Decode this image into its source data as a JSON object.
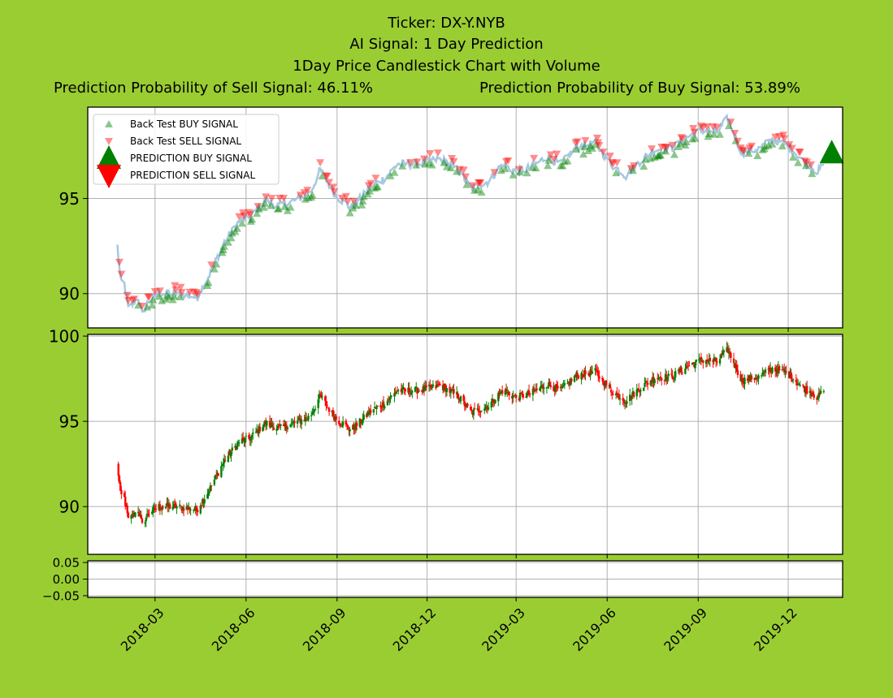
{
  "titles": {
    "line1": "Ticker: DX-Y.NYB",
    "line2": "AI Signal: 1 Day Prediction",
    "line3": "1Day Price Candlestick Chart with Volume",
    "sell_prob": "Prediction Probability of Sell Signal: 46.11%",
    "buy_prob": "Prediction Probability of Buy Signal: 53.89%"
  },
  "colors": {
    "background": "#9acd32",
    "buy": "#008000",
    "sell": "#ff0000",
    "close_line": "#a6c8e0",
    "grid": "#b0b0b0"
  },
  "chart_data": [
    {
      "type": "scatter",
      "panel": "signals",
      "ylim": [
        88.2,
        99.8
      ],
      "yticks": [
        90,
        95
      ],
      "grid": true,
      "legend_position": "top-left",
      "legend": [
        "Back Test BUY SIGNAL",
        "Back Test SELL SIGNAL",
        "PREDICTION BUY SIGNAL",
        "PREDICTION SELL SIGNAL"
      ],
      "close_anchors": [
        [
          "2018-01-22",
          92.5
        ],
        [
          "2018-01-25",
          90.7
        ],
        [
          "2018-01-29",
          90.5
        ],
        [
          "2018-02-02",
          89.2
        ],
        [
          "2018-02-12",
          89.8
        ],
        [
          "2018-02-16",
          88.9
        ],
        [
          "2018-02-22",
          89.6
        ],
        [
          "2018-03-05",
          90.0
        ],
        [
          "2018-03-20",
          90.0
        ],
        [
          "2018-04-05",
          89.9
        ],
        [
          "2018-04-12",
          89.8
        ],
        [
          "2018-04-25",
          91.0
        ],
        [
          "2018-05-10",
          92.7
        ],
        [
          "2018-05-25",
          93.8
        ],
        [
          "2018-06-05",
          94.0
        ],
        [
          "2018-06-20",
          94.9
        ],
        [
          "2018-07-05",
          94.6
        ],
        [
          "2018-07-20",
          94.9
        ],
        [
          "2018-08-05",
          95.3
        ],
        [
          "2018-08-15",
          96.5
        ],
        [
          "2018-08-30",
          95.2
        ],
        [
          "2018-09-15",
          94.5
        ],
        [
          "2018-09-25",
          95.0
        ],
        [
          "2018-10-05",
          95.6
        ],
        [
          "2018-10-20",
          96.1
        ],
        [
          "2018-11-01",
          96.8
        ],
        [
          "2018-11-15",
          96.8
        ],
        [
          "2018-12-01",
          96.9
        ],
        [
          "2018-12-15",
          97.1
        ],
        [
          "2019-01-01",
          96.5
        ],
        [
          "2019-01-15",
          95.5
        ],
        [
          "2019-02-01",
          95.9
        ],
        [
          "2019-02-15",
          96.8
        ],
        [
          "2019-03-01",
          96.4
        ],
        [
          "2019-03-15",
          96.6
        ],
        [
          "2019-04-01",
          97.2
        ],
        [
          "2019-04-15",
          96.8
        ],
        [
          "2019-05-01",
          97.7
        ],
        [
          "2019-05-20",
          97.9
        ],
        [
          "2019-06-05",
          96.8
        ],
        [
          "2019-06-20",
          96.2
        ],
        [
          "2019-07-05",
          97.0
        ],
        [
          "2019-07-20",
          97.6
        ],
        [
          "2019-08-05",
          97.6
        ],
        [
          "2019-08-20",
          98.2
        ],
        [
          "2019-09-05",
          98.6
        ],
        [
          "2019-09-20",
          98.5
        ],
        [
          "2019-10-01",
          99.2
        ],
        [
          "2019-10-15",
          97.4
        ],
        [
          "2019-11-01",
          97.6
        ],
        [
          "2019-11-15",
          98.1
        ],
        [
          "2019-12-01",
          97.8
        ],
        [
          "2019-12-15",
          97.0
        ],
        [
          "2019-12-24",
          96.7
        ],
        [
          "2019-12-31",
          96.4
        ],
        [
          "2020-01-06",
          96.8
        ]
      ],
      "prediction": {
        "date": "2020-01-14",
        "value": 97.4,
        "signal": "BUY"
      }
    },
    {
      "type": "candlestick",
      "panel": "price",
      "ylim": [
        87.2,
        100.1
      ],
      "yticks": [
        90,
        95,
        100
      ],
      "grid": true,
      "up_color": "green",
      "down_color": "red"
    },
    {
      "type": "bar",
      "panel": "volume",
      "ylim": [
        -0.055,
        0.055
      ],
      "yticks": [
        "0.05",
        "0.00",
        "−0.05"
      ],
      "grid": true
    }
  ],
  "x_axis": {
    "tick_dates": [
      "2018-03-01",
      "2018-06-01",
      "2018-09-01",
      "2018-12-01",
      "2019-03-01",
      "2019-06-01",
      "2019-09-01",
      "2019-12-01"
    ],
    "tick_labels": [
      "2018-03",
      "2018-06",
      "2018-09",
      "2018-12",
      "2019-03",
      "2019-06",
      "2019-09",
      "2019-12"
    ],
    "range": [
      "2017-12-23",
      "2020-01-25"
    ]
  }
}
